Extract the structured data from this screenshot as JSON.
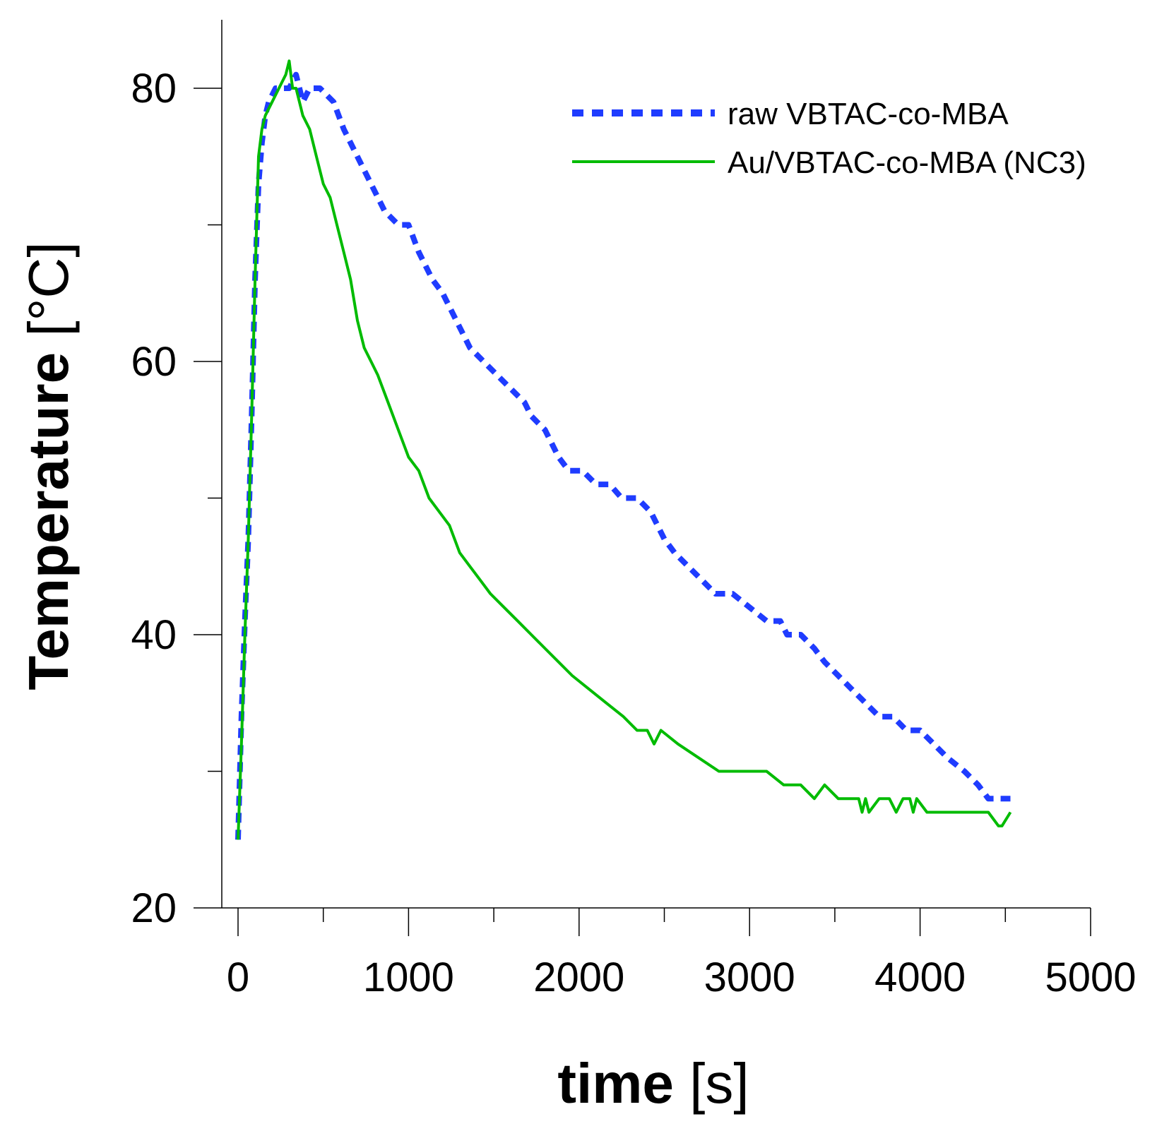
{
  "chart_data": {
    "type": "line",
    "title": "",
    "xlabel": {
      "bold": "time",
      "rest": " [s]"
    },
    "ylabel": {
      "bold": "Temperature",
      "rest": " [°C]"
    },
    "xlim": [
      -100,
      5000
    ],
    "ylim": [
      20,
      85
    ],
    "xticks": [
      0,
      1000,
      2000,
      3000,
      4000,
      5000
    ],
    "xticks_minor": [
      500,
      1500,
      2500,
      3500,
      4500
    ],
    "yticks": [
      20,
      40,
      60,
      80
    ],
    "yticks_minor": [
      30,
      50,
      70
    ],
    "legend_position": "top-right",
    "grid": false,
    "series": [
      {
        "name": "raw VBTAC-co-MBA",
        "style": "dashed",
        "color": "#1f3cff",
        "x": [
          0,
          20,
          40,
          60,
          80,
          100,
          120,
          140,
          160,
          180,
          220,
          260,
          300,
          340,
          380,
          420,
          480,
          560,
          620,
          700,
          780,
          860,
          940,
          1000,
          1060,
          1140,
          1200,
          1280,
          1360,
          1440,
          1520,
          1600,
          1680,
          1720,
          1800,
          1880,
          1940,
          2020,
          2100,
          2180,
          2250,
          2340,
          2420,
          2500,
          2560,
          2640,
          2720,
          2800,
          2900,
          3000,
          3100,
          3180,
          3220,
          3300,
          3380,
          3440,
          3520,
          3600,
          3680,
          3760,
          3840,
          3920,
          4000,
          4080,
          4160,
          4260,
          4340,
          4400,
          4460,
          4530
        ],
        "y": [
          25,
          34,
          41,
          47,
          56,
          66,
          73,
          76,
          78,
          79,
          80,
          80,
          80,
          81,
          79,
          80,
          80,
          79,
          77,
          75,
          73,
          71,
          70,
          70,
          68,
          66,
          65,
          63,
          61,
          60,
          59,
          58,
          57,
          56,
          55,
          53,
          52,
          52,
          51,
          51,
          50,
          50,
          49,
          47,
          46,
          45,
          44,
          43,
          43,
          42,
          41,
          41,
          40,
          40,
          39,
          38,
          37,
          36,
          35,
          34,
          34,
          33,
          33,
          32,
          31,
          30,
          29,
          28,
          28,
          28
        ]
      },
      {
        "name": "Au/VBTAC-co-MBA (NC3)",
        "style": "solid",
        "color": "#00bb00",
        "x": [
          0,
          20,
          40,
          60,
          80,
          100,
          120,
          140,
          160,
          200,
          240,
          280,
          300,
          320,
          340,
          380,
          420,
          460,
          500,
          540,
          580,
          620,
          660,
          700,
          740,
          780,
          820,
          880,
          940,
          1000,
          1060,
          1120,
          1180,
          1240,
          1300,
          1360,
          1420,
          1480,
          1560,
          1640,
          1720,
          1800,
          1880,
          1960,
          2060,
          2160,
          2260,
          2340,
          2400,
          2440,
          2480,
          2580,
          2700,
          2820,
          2960,
          3100,
          3200,
          3300,
          3380,
          3440,
          3520,
          3600,
          3640,
          3660,
          3680,
          3700,
          3760,
          3820,
          3860,
          3900,
          3940,
          3960,
          3980,
          4040,
          4140,
          4240,
          4340,
          4400,
          4460,
          4480,
          4530
        ],
        "y": [
          25,
          32,
          40,
          47,
          56,
          66,
          75,
          77,
          78,
          79,
          80,
          81,
          82,
          80,
          80,
          78,
          77,
          75,
          73,
          72,
          70,
          68,
          66,
          63,
          61,
          60,
          59,
          57,
          55,
          53,
          52,
          50,
          49,
          48,
          46,
          45,
          44,
          43,
          42,
          41,
          40,
          39,
          38,
          37,
          36,
          35,
          34,
          33,
          33,
          32,
          33,
          32,
          31,
          30,
          30,
          30,
          29,
          29,
          28,
          29,
          28,
          28,
          28,
          27,
          28,
          27,
          28,
          28,
          27,
          28,
          28,
          27,
          28,
          27,
          27,
          27,
          27,
          27,
          26,
          26,
          27
        ]
      }
    ]
  }
}
